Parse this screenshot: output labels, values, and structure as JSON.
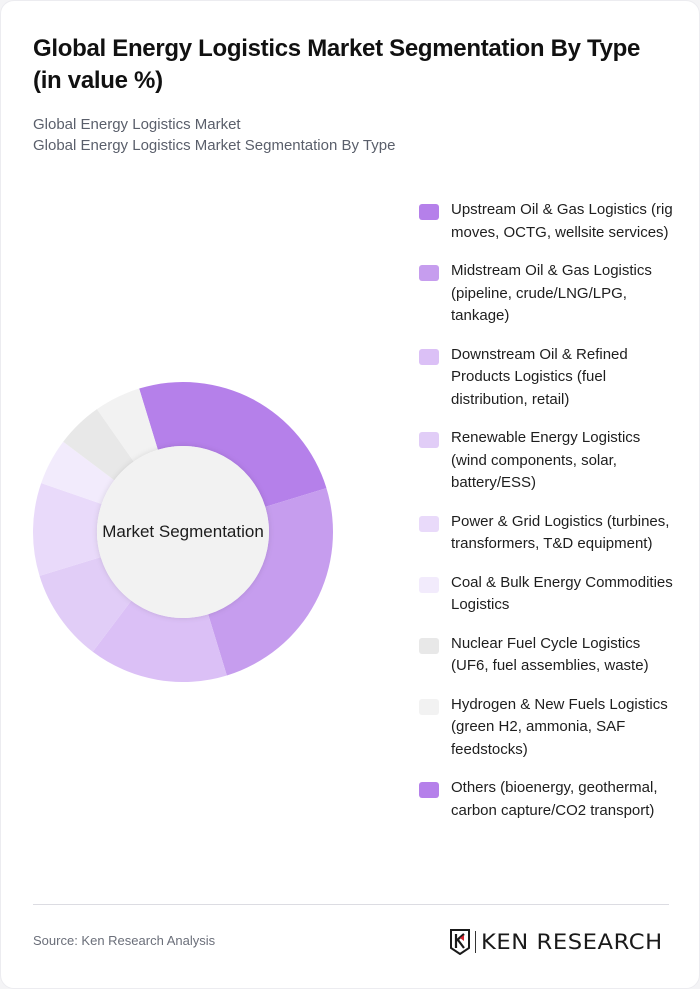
{
  "header": {
    "title": "Global Energy Logistics Market Segmentation By Type (in value %)",
    "subtitle_line1": "Global Energy Logistics Market",
    "subtitle_line2": "Global Energy Logistics Market Segmentation By Type"
  },
  "chart": {
    "center_label": "Market Segmentation"
  },
  "chart_data": {
    "type": "pie",
    "subtype": "donut",
    "title": "Global Energy Logistics Market Segmentation By Type (in value %)",
    "center_label": "Market Segmentation",
    "legend_position": "right",
    "categories": [
      "Upstream Oil & Gas Logistics (rig moves, OCTG, wellsite services)",
      "Midstream Oil & Gas Logistics (pipeline, crude/LNG/LPG, tankage)",
      "Downstream Oil & Refined Products Logistics (fuel distribution, retail)",
      "Renewable Energy Logistics (wind components, solar, battery/ESS)",
      "Power & Grid Logistics (turbines, transformers, T&D equipment)",
      "Coal & Bulk Energy Commodities Logistics",
      "Nuclear Fuel Cycle Logistics (UF6, fuel assemblies, waste)",
      "Hydrogen & New Fuels Logistics (green H2, ammonia, SAF feedstocks)",
      "Others (bioenergy, geothermal, carbon capture/CO2 transport)"
    ],
    "values": [
      25,
      25,
      15,
      10,
      10,
      5,
      5,
      5,
      0
    ],
    "colors": [
      "#b580ea",
      "#c69dee",
      "#dbc0f6",
      "#e1cdf7",
      "#e9dafa",
      "#f2ebfc",
      "#e8e8e8",
      "#f2f2f2",
      "#b580ea"
    ],
    "start_angle_deg": -17
  },
  "legend": {
    "items": [
      {
        "label": "Upstream Oil & Gas Logistics (rig moves, OCTG, wellsite services)",
        "color": "#b580ea"
      },
      {
        "label": "Midstream Oil & Gas Logistics (pipeline, crude/LNG/LPG, tankage)",
        "color": "#c69dee"
      },
      {
        "label": "Downstream Oil & Refined Products Logistics (fuel distribution, retail)",
        "color": "#dbc0f6"
      },
      {
        "label": "Renewable Energy Logistics (wind components, solar, battery/ESS)",
        "color": "#e1cdf7"
      },
      {
        "label": "Power & Grid Logistics (turbines, transformers, T&D equipment)",
        "color": "#e9dafa"
      },
      {
        "label": "Coal & Bulk Energy Commodities Logistics",
        "color": "#f2ebfc"
      },
      {
        "label": "Nuclear Fuel Cycle Logistics (UF6, fuel assemblies, waste)",
        "color": "#e8e8e8"
      },
      {
        "label": "Hydrogen & New Fuels Logistics (green H2, ammonia, SAF feedstocks)",
        "color": "#f2f2f2"
      },
      {
        "label": "Others (bioenergy, geothermal, carbon capture/CO2 transport)",
        "color": "#b580ea"
      }
    ]
  },
  "footer": {
    "source": "Source: Ken Research Analysis",
    "logo_text": "KEN RESEARCH"
  }
}
